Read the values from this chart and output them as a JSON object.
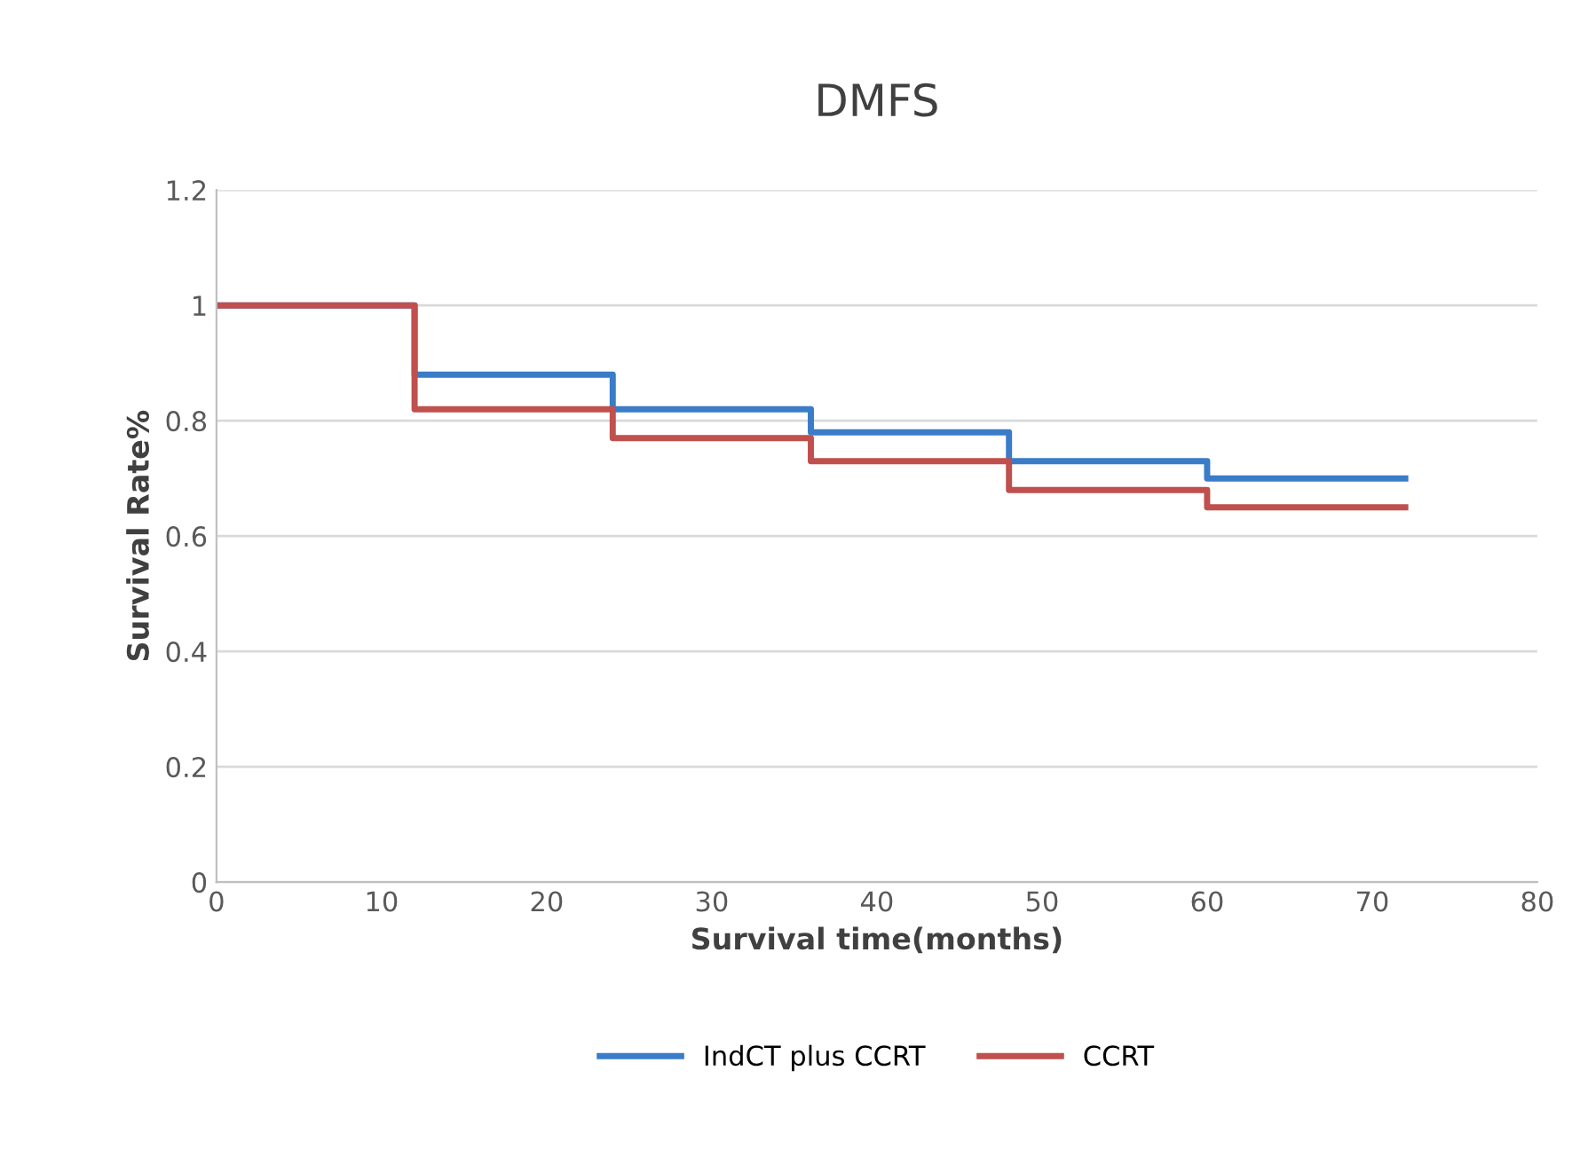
{
  "chart_data": {
    "type": "step",
    "title": "DMFS",
    "xlabel": "Survival time(months)",
    "ylabel": "Survival Rate%",
    "x": [
      0,
      12,
      24,
      36,
      48,
      60,
      72
    ],
    "series": [
      {
        "name": "IndCT plus CCRT",
        "color": "#3a7cc8",
        "values": [
          1,
          0.88,
          0.82,
          0.78,
          0.73,
          0.7,
          0.7
        ]
      },
      {
        "name": "CCRT",
        "color": "#c0504d",
        "values": [
          1,
          0.82,
          0.77,
          0.73,
          0.68,
          0.65,
          0.65
        ]
      }
    ],
    "xlim": [
      0,
      80
    ],
    "xticks": [
      0,
      10,
      20,
      30,
      40,
      50,
      60,
      70,
      80
    ],
    "ylim": [
      0,
      1.2
    ],
    "yticks": [
      0,
      0.2,
      0.4,
      0.6,
      0.8,
      1,
      1.2
    ],
    "grid": "y",
    "legend": "bottom",
    "line_style": "solid",
    "marker": "none"
  }
}
